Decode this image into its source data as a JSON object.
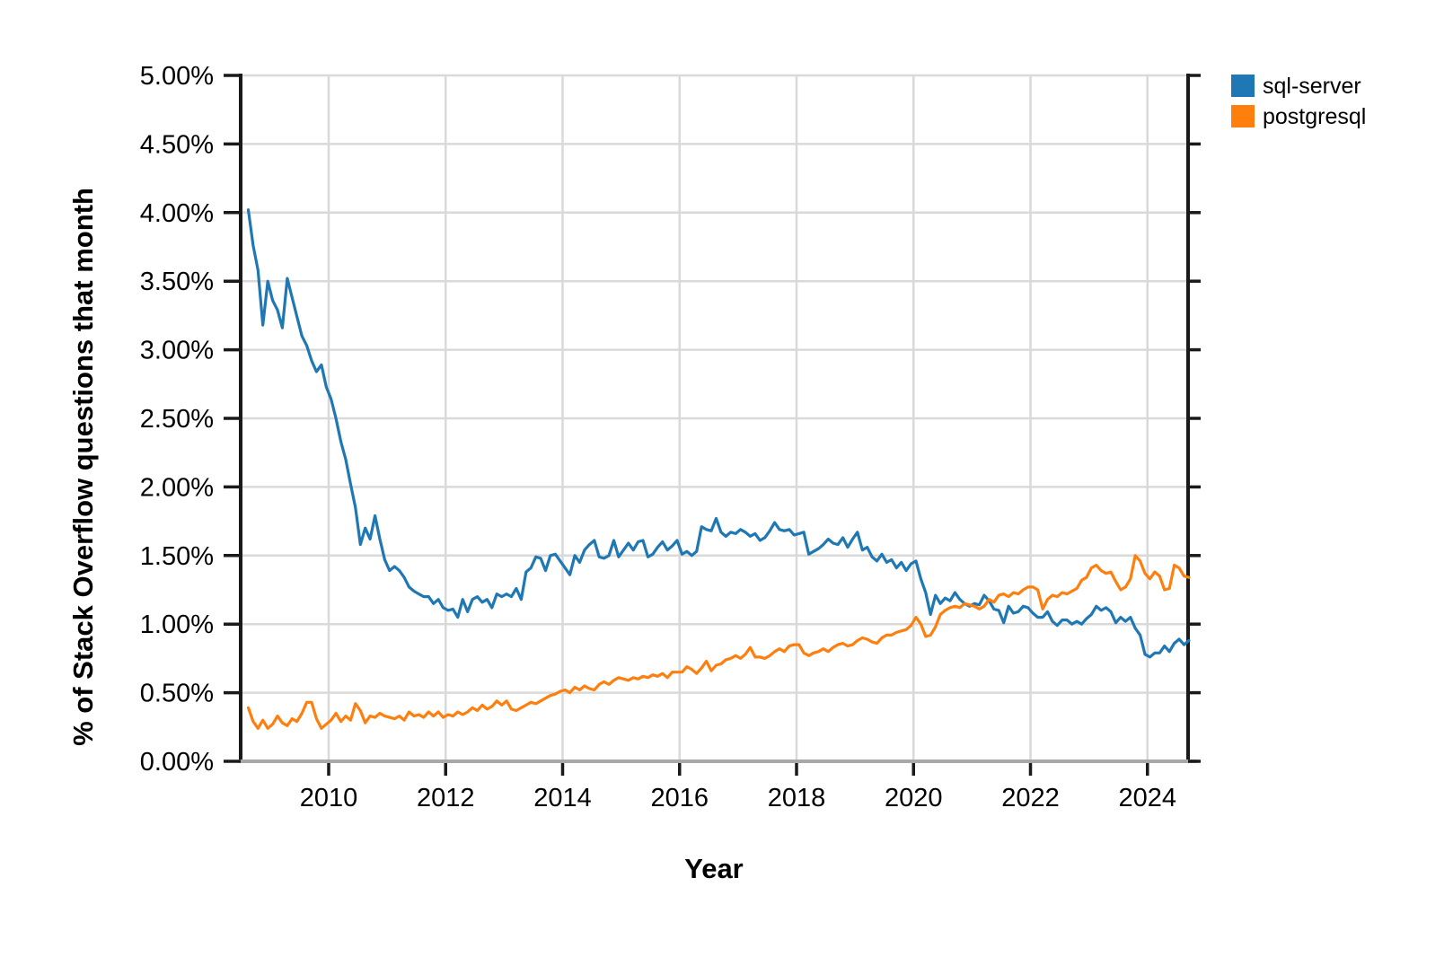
{
  "chart_data": {
    "type": "line",
    "xlabel": "Year",
    "ylabel": "% of Stack Overflow questions that month",
    "legend_position": "top-right-outside",
    "grid": true,
    "ylim": [
      0,
      5
    ],
    "y_tick_values": [
      0,
      0.5,
      1.0,
      1.5,
      2.0,
      2.5,
      3.0,
      3.5,
      4.0,
      4.5,
      5.0
    ],
    "y_tick_labels": [
      "0.00%",
      "0.50%",
      "1.00%",
      "1.50%",
      "2.00%",
      "2.50%",
      "3.00%",
      "3.50%",
      "4.00%",
      "4.50%",
      "5.00%"
    ],
    "x_tick_values": [
      2010,
      2012,
      2014,
      2016,
      2018,
      2020,
      2022,
      2024
    ],
    "x_tick_labels": [
      "2010",
      "2012",
      "2014",
      "2016",
      "2018",
      "2020",
      "2022",
      "2024"
    ],
    "x_monthly_start": "2008-08",
    "x_monthly_end": "2024-09",
    "series": [
      {
        "name": "sql-server",
        "color": "#1f77b4",
        "values": [
          4.02,
          3.76,
          3.58,
          3.18,
          3.5,
          3.36,
          3.29,
          3.16,
          3.52,
          3.38,
          3.24,
          3.1,
          3.03,
          2.92,
          2.84,
          2.89,
          2.73,
          2.64,
          2.5,
          2.33,
          2.2,
          2.02,
          1.85,
          1.58,
          1.7,
          1.62,
          1.79,
          1.62,
          1.47,
          1.39,
          1.42,
          1.39,
          1.34,
          1.27,
          1.24,
          1.22,
          1.2,
          1.2,
          1.15,
          1.18,
          1.12,
          1.1,
          1.11,
          1.05,
          1.18,
          1.09,
          1.18,
          1.2,
          1.16,
          1.18,
          1.12,
          1.22,
          1.2,
          1.22,
          1.2,
          1.26,
          1.18,
          1.38,
          1.41,
          1.49,
          1.48,
          1.39,
          1.5,
          1.51,
          1.46,
          1.41,
          1.36,
          1.5,
          1.45,
          1.54,
          1.58,
          1.61,
          1.49,
          1.48,
          1.5,
          1.61,
          1.49,
          1.54,
          1.59,
          1.54,
          1.6,
          1.61,
          1.49,
          1.51,
          1.56,
          1.6,
          1.54,
          1.57,
          1.61,
          1.51,
          1.53,
          1.5,
          1.53,
          1.71,
          1.69,
          1.68,
          1.77,
          1.67,
          1.64,
          1.67,
          1.66,
          1.69,
          1.67,
          1.64,
          1.66,
          1.61,
          1.63,
          1.68,
          1.74,
          1.69,
          1.68,
          1.69,
          1.65,
          1.66,
          1.67,
          1.51,
          1.53,
          1.55,
          1.58,
          1.62,
          1.59,
          1.58,
          1.63,
          1.56,
          1.62,
          1.67,
          1.54,
          1.56,
          1.49,
          1.46,
          1.51,
          1.45,
          1.47,
          1.41,
          1.45,
          1.39,
          1.44,
          1.46,
          1.33,
          1.23,
          1.07,
          1.21,
          1.15,
          1.19,
          1.17,
          1.23,
          1.18,
          1.15,
          1.13,
          1.15,
          1.14,
          1.21,
          1.17,
          1.11,
          1.1,
          1.01,
          1.13,
          1.08,
          1.09,
          1.13,
          1.12,
          1.08,
          1.05,
          1.05,
          1.09,
          1.02,
          0.99,
          1.03,
          1.03,
          1.0,
          1.02,
          1.0,
          1.04,
          1.07,
          1.13,
          1.1,
          1.12,
          1.09,
          1.01,
          1.05,
          1.02,
          1.05,
          0.97,
          0.92,
          0.78,
          0.76,
          0.79,
          0.79,
          0.84,
          0.8,
          0.86,
          0.89,
          0.85,
          0.88
        ]
      },
      {
        "name": "postgresql",
        "color": "#ff7f0e",
        "values": [
          0.39,
          0.29,
          0.24,
          0.3,
          0.24,
          0.27,
          0.33,
          0.28,
          0.26,
          0.31,
          0.29,
          0.35,
          0.43,
          0.43,
          0.31,
          0.24,
          0.27,
          0.3,
          0.35,
          0.29,
          0.33,
          0.3,
          0.42,
          0.37,
          0.28,
          0.33,
          0.32,
          0.35,
          0.33,
          0.32,
          0.31,
          0.33,
          0.3,
          0.36,
          0.33,
          0.34,
          0.32,
          0.36,
          0.33,
          0.36,
          0.32,
          0.34,
          0.33,
          0.36,
          0.34,
          0.36,
          0.39,
          0.37,
          0.41,
          0.38,
          0.4,
          0.44,
          0.41,
          0.44,
          0.38,
          0.37,
          0.39,
          0.41,
          0.43,
          0.42,
          0.44,
          0.46,
          0.48,
          0.49,
          0.51,
          0.52,
          0.5,
          0.54,
          0.52,
          0.55,
          0.53,
          0.52,
          0.56,
          0.58,
          0.56,
          0.59,
          0.61,
          0.6,
          0.59,
          0.61,
          0.6,
          0.62,
          0.61,
          0.63,
          0.62,
          0.64,
          0.61,
          0.65,
          0.65,
          0.65,
          0.69,
          0.67,
          0.64,
          0.68,
          0.73,
          0.66,
          0.7,
          0.71,
          0.74,
          0.75,
          0.77,
          0.75,
          0.78,
          0.83,
          0.76,
          0.76,
          0.75,
          0.77,
          0.8,
          0.82,
          0.8,
          0.84,
          0.85,
          0.85,
          0.79,
          0.77,
          0.79,
          0.8,
          0.82,
          0.8,
          0.83,
          0.85,
          0.86,
          0.84,
          0.85,
          0.88,
          0.9,
          0.89,
          0.87,
          0.86,
          0.9,
          0.92,
          0.92,
          0.94,
          0.95,
          0.96,
          0.99,
          1.05,
          1.0,
          0.91,
          0.92,
          0.98,
          1.07,
          1.1,
          1.12,
          1.13,
          1.12,
          1.15,
          1.14,
          1.13,
          1.11,
          1.13,
          1.18,
          1.16,
          1.21,
          1.22,
          1.2,
          1.23,
          1.22,
          1.25,
          1.27,
          1.27,
          1.25,
          1.11,
          1.18,
          1.21,
          1.2,
          1.23,
          1.22,
          1.24,
          1.26,
          1.32,
          1.34,
          1.41,
          1.43,
          1.39,
          1.37,
          1.38,
          1.31,
          1.25,
          1.27,
          1.33,
          1.5,
          1.46,
          1.37,
          1.33,
          1.38,
          1.35,
          1.25,
          1.26,
          1.43,
          1.41,
          1.35,
          1.34
        ]
      }
    ],
    "colors": {
      "gridline": "#d9d9d9",
      "y_axis_line": "#1a1a1a",
      "x_axis_line": "#a8a8a8",
      "tick": "#1a1a1a",
      "text": "#000000",
      "background": "#ffffff"
    }
  }
}
